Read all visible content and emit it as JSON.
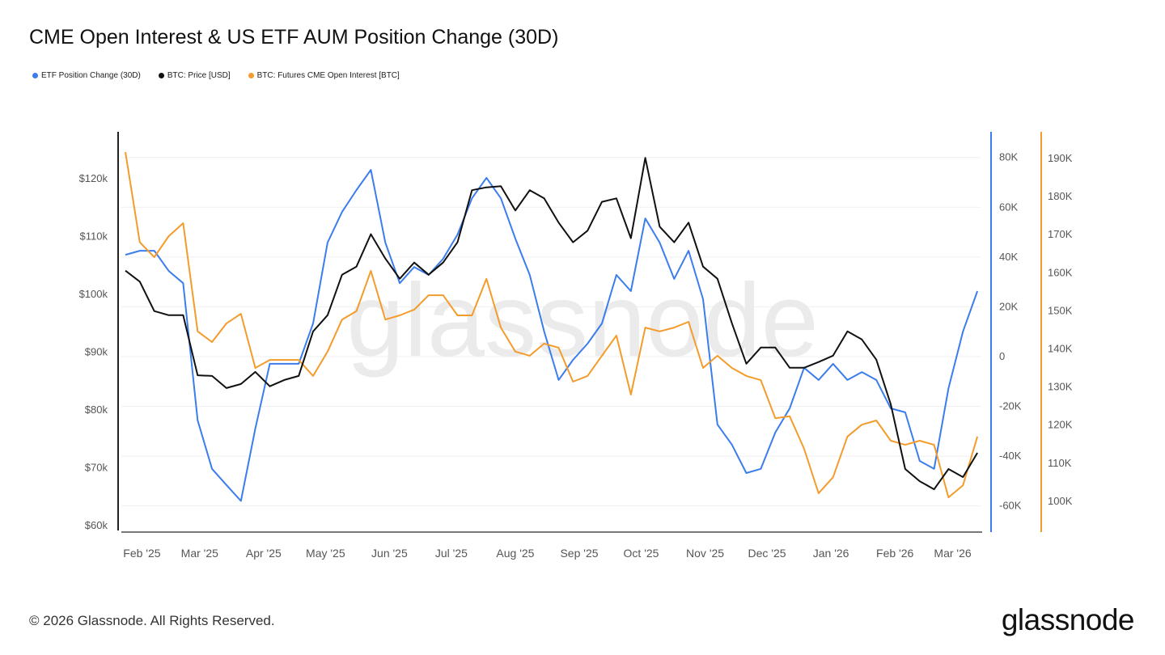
{
  "title": "CME Open Interest & US ETF AUM Position Change (30D)",
  "footer": {
    "copyright": "© 2026 Glassnode. All Rights Reserved.",
    "logo": "glassnode"
  },
  "watermark": "glassnode",
  "chart_data": {
    "type": "line",
    "title": "CME Open Interest & US ETF AUM Position Change (30D)",
    "legend_position": "top-left",
    "grid": true,
    "x": [
      "2025-01-24",
      "2025-01-31",
      "2025-02-07",
      "2025-02-14",
      "2025-02-21",
      "2025-02-28",
      "2025-03-07",
      "2025-03-14",
      "2025-03-21",
      "2025-03-28",
      "2025-04-04",
      "2025-04-11",
      "2025-04-18",
      "2025-04-25",
      "2025-05-02",
      "2025-05-09",
      "2025-05-16",
      "2025-05-23",
      "2025-05-30",
      "2025-06-06",
      "2025-06-13",
      "2025-06-20",
      "2025-06-27",
      "2025-07-04",
      "2025-07-11",
      "2025-07-18",
      "2025-07-25",
      "2025-08-01",
      "2025-08-08",
      "2025-08-15",
      "2025-08-22",
      "2025-08-29",
      "2025-09-05",
      "2025-09-12",
      "2025-09-19",
      "2025-09-26",
      "2025-10-03",
      "2025-10-10",
      "2025-10-17",
      "2025-10-24",
      "2025-10-31",
      "2025-11-07",
      "2025-11-14",
      "2025-11-21",
      "2025-11-28",
      "2025-12-05",
      "2025-12-12",
      "2025-12-19",
      "2025-12-26",
      "2026-01-02",
      "2026-01-09",
      "2026-01-16",
      "2026-01-23",
      "2026-01-30",
      "2026-02-06",
      "2026-02-13",
      "2026-02-20",
      "2026-02-27",
      "2026-03-06",
      "2026-03-13"
    ],
    "x_ticks": [
      {
        "date": "2025-02-01",
        "label": "Feb '25"
      },
      {
        "date": "2025-03-01",
        "label": "Mar '25"
      },
      {
        "date": "2025-04-01",
        "label": "Apr '25"
      },
      {
        "date": "2025-05-01",
        "label": "May '25"
      },
      {
        "date": "2025-06-01",
        "label": "Jun '25"
      },
      {
        "date": "2025-07-01",
        "label": "Jul '25"
      },
      {
        "date": "2025-08-01",
        "label": "Aug '25"
      },
      {
        "date": "2025-09-01",
        "label": "Sep '25"
      },
      {
        "date": "2025-10-01",
        "label": "Oct '25"
      },
      {
        "date": "2025-11-01",
        "label": "Nov '25"
      },
      {
        "date": "2025-12-01",
        "label": "Dec '25"
      },
      {
        "date": "2026-01-01",
        "label": "Jan '26"
      },
      {
        "date": "2026-02-01",
        "label": "Feb '26"
      },
      {
        "date": "2026-03-01",
        "label": "Mar '26"
      }
    ],
    "axes": {
      "left": {
        "series": "BTC: Price [USD]",
        "ylim": [
          58900,
          128100
        ],
        "ticks": [
          60000,
          70000,
          80000,
          90000,
          100000,
          110000,
          120000
        ],
        "tick_labels": [
          "$60k",
          "$70k",
          "$80k",
          "$90k",
          "$100k",
          "$110k",
          "$120k"
        ],
        "color": "#111111"
      },
      "right1": {
        "series": "ETF Position Change (30D)",
        "ylim": [
          -70500,
          90300
        ],
        "ticks": [
          -60000,
          -40000,
          -20000,
          0,
          20000,
          40000,
          60000,
          80000
        ],
        "tick_labels": [
          "-60K",
          "-40K",
          "-20K",
          "0",
          "20K",
          "40K",
          "60K",
          "80K"
        ],
        "color": "#3b7ded"
      },
      "right2": {
        "series": "BTC: Futures CME Open Interest [BTC]",
        "ylim": [
          91900,
          197000
        ],
        "ticks": [
          100000,
          110000,
          120000,
          130000,
          140000,
          150000,
          160000,
          170000,
          180000,
          190000
        ],
        "tick_labels": [
          "100K",
          "110K",
          "120K",
          "130K",
          "140K",
          "150K",
          "160K",
          "170K",
          "180K",
          "190K"
        ],
        "color": "#f39c2b"
      }
    },
    "series": [
      {
        "name": "ETF Position Change (30D)",
        "axis": "right1",
        "color": "#3b7ded",
        "values": [
          40900,
          42500,
          42500,
          34400,
          29500,
          -25600,
          -45100,
          -51600,
          -58000,
          -28900,
          -2900,
          -2900,
          -2900,
          13300,
          45800,
          58100,
          66900,
          75000,
          45800,
          29500,
          36000,
          32800,
          39300,
          49000,
          63600,
          71800,
          63600,
          47400,
          32800,
          10100,
          -9400,
          -1300,
          5200,
          13300,
          32800,
          26300,
          55500,
          45800,
          31200,
          42500,
          23100,
          -27300,
          -35400,
          -46800,
          -45100,
          -30500,
          -20800,
          -4500,
          -9400,
          -2900,
          -9400,
          -6200,
          -9400,
          -20800,
          -22400,
          -41900,
          -45100,
          -12700,
          10100,
          26300
        ]
      },
      {
        "name": "BTC: Price [USD]",
        "axis": "left",
        "color": "#111111",
        "values": [
          104100,
          102200,
          97100,
          96400,
          96400,
          86000,
          85900,
          83800,
          84500,
          86600,
          84100,
          85200,
          85900,
          93600,
          96400,
          103400,
          104800,
          110400,
          106200,
          102700,
          105500,
          103400,
          105500,
          109000,
          118000,
          118500,
          118700,
          114500,
          118000,
          116600,
          112400,
          109000,
          111000,
          116000,
          116600,
          109700,
          123600,
          111700,
          109000,
          112400,
          104800,
          102700,
          95000,
          88000,
          90800,
          90800,
          87300,
          87300,
          88300,
          89400,
          93600,
          92200,
          88700,
          81000,
          69800,
          67700,
          66300,
          69800,
          68400,
          72600
        ]
      },
      {
        "name": "BTC: Futures CME Open Interest [BTC]",
        "axis": "right2",
        "color": "#f39c2b",
        "values": [
          191700,
          168000,
          164100,
          169600,
          173000,
          144600,
          141800,
          146700,
          149200,
          135000,
          137100,
          137100,
          137100,
          132900,
          139300,
          147700,
          149900,
          160500,
          147700,
          148800,
          150300,
          154100,
          154100,
          148800,
          148800,
          158400,
          145600,
          139300,
          138200,
          141400,
          140300,
          131400,
          132900,
          138200,
          143500,
          128000,
          145600,
          144600,
          145600,
          147100,
          135000,
          138200,
          135000,
          132900,
          131800,
          121800,
          122300,
          113800,
          102100,
          106300,
          117000,
          120100,
          121200,
          115900,
          114800,
          115900,
          114800,
          101000,
          104200,
          117000
        ]
      }
    ]
  }
}
